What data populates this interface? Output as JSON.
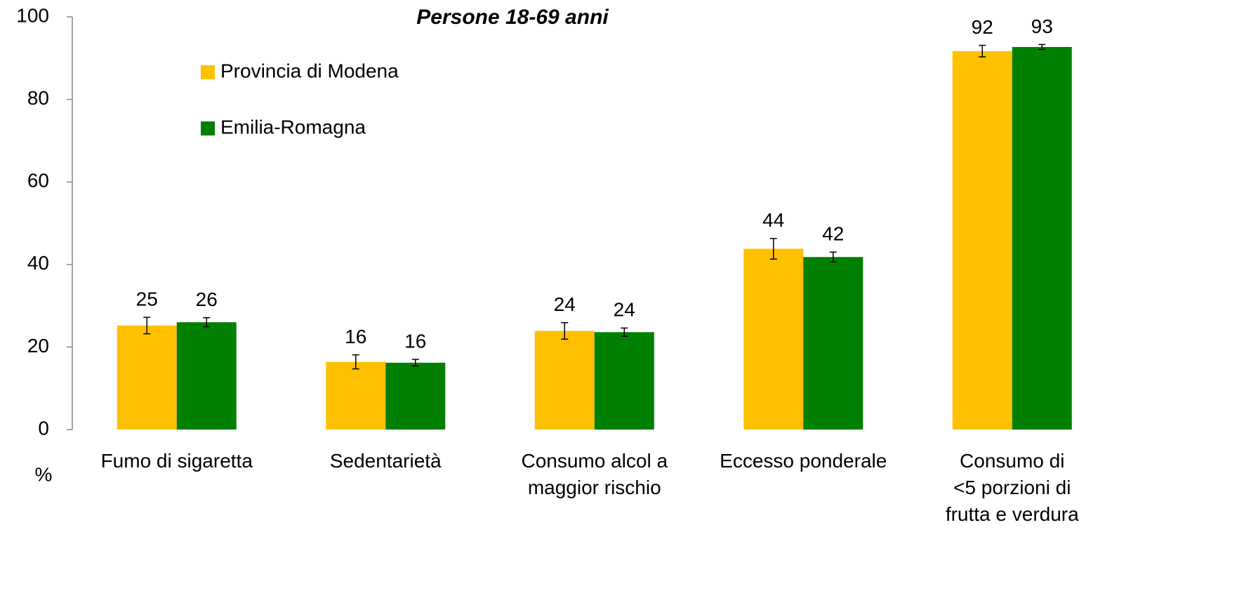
{
  "chart_data": {
    "type": "bar",
    "title": "Persone 18-69 anni",
    "ylabel": "%",
    "categories": [
      "Fumo di sigaretta",
      "Sedentarietà",
      "Consumo alcol a\nmaggior rischio",
      "Eccesso ponderale",
      "Consumo di\n<5 porzioni di\nfrutta e verdura"
    ],
    "series": [
      {
        "name": "Provincia di Modena",
        "color": "#ffc000",
        "values": [
          25.2,
          16.4,
          23.9,
          43.8,
          91.7
        ],
        "value_labels": [
          "25",
          "16",
          "24",
          "44",
          "92"
        ],
        "errors": [
          2.0,
          1.7,
          2.0,
          2.5,
          1.4
        ]
      },
      {
        "name": "Emilia-Romagna",
        "color": "#008000",
        "values": [
          26.0,
          16.2,
          23.6,
          41.8,
          92.7
        ],
        "value_labels": [
          "26",
          "16",
          "24",
          "42",
          "93"
        ],
        "errors": [
          1.1,
          0.8,
          1.0,
          1.2,
          0.6
        ]
      }
    ],
    "ylim": [
      0,
      100
    ],
    "yticks": [
      0,
      20,
      40,
      60,
      80,
      100
    ],
    "grid": false
  }
}
